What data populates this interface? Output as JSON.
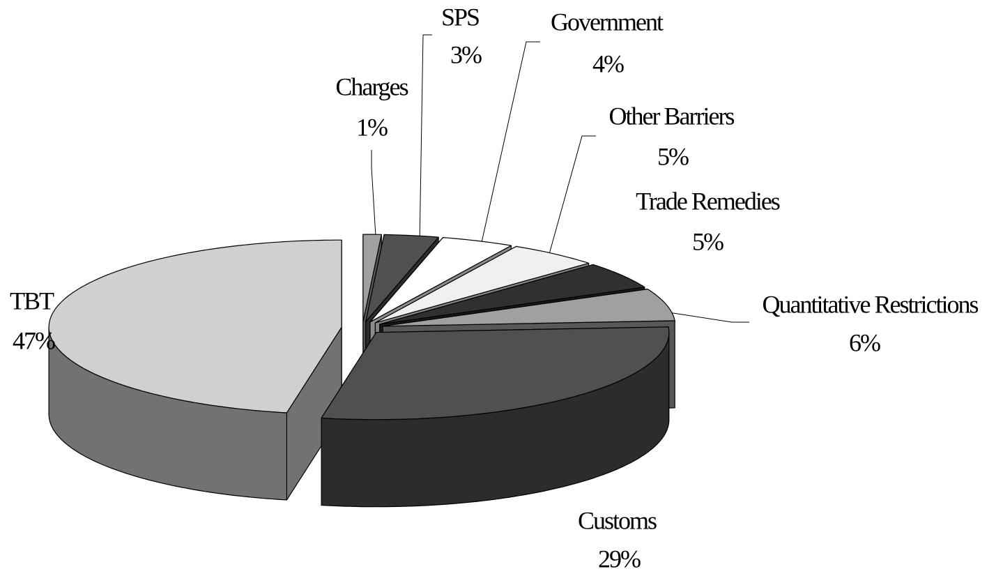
{
  "chart_data": {
    "type": "pie",
    "three_d": true,
    "exploded": true,
    "categories": [
      "Charges",
      "SPS",
      "Government",
      "Other Barriers",
      "Trade Remedies",
      "Quantitative Restrictions",
      "Customs",
      "TBT"
    ],
    "values": [
      1,
      3,
      4,
      5,
      5,
      6,
      29,
      47
    ],
    "value_labels": [
      "1%",
      "3%",
      "4%",
      "5%",
      "5%",
      "6%",
      "29%",
      "47%"
    ],
    "colors": [
      "#a0a0a0",
      "#505050",
      "#ffffff",
      "#f0f0f0",
      "#303030",
      "#a0a0a0",
      "#505050",
      "#d0d0d0"
    ]
  }
}
